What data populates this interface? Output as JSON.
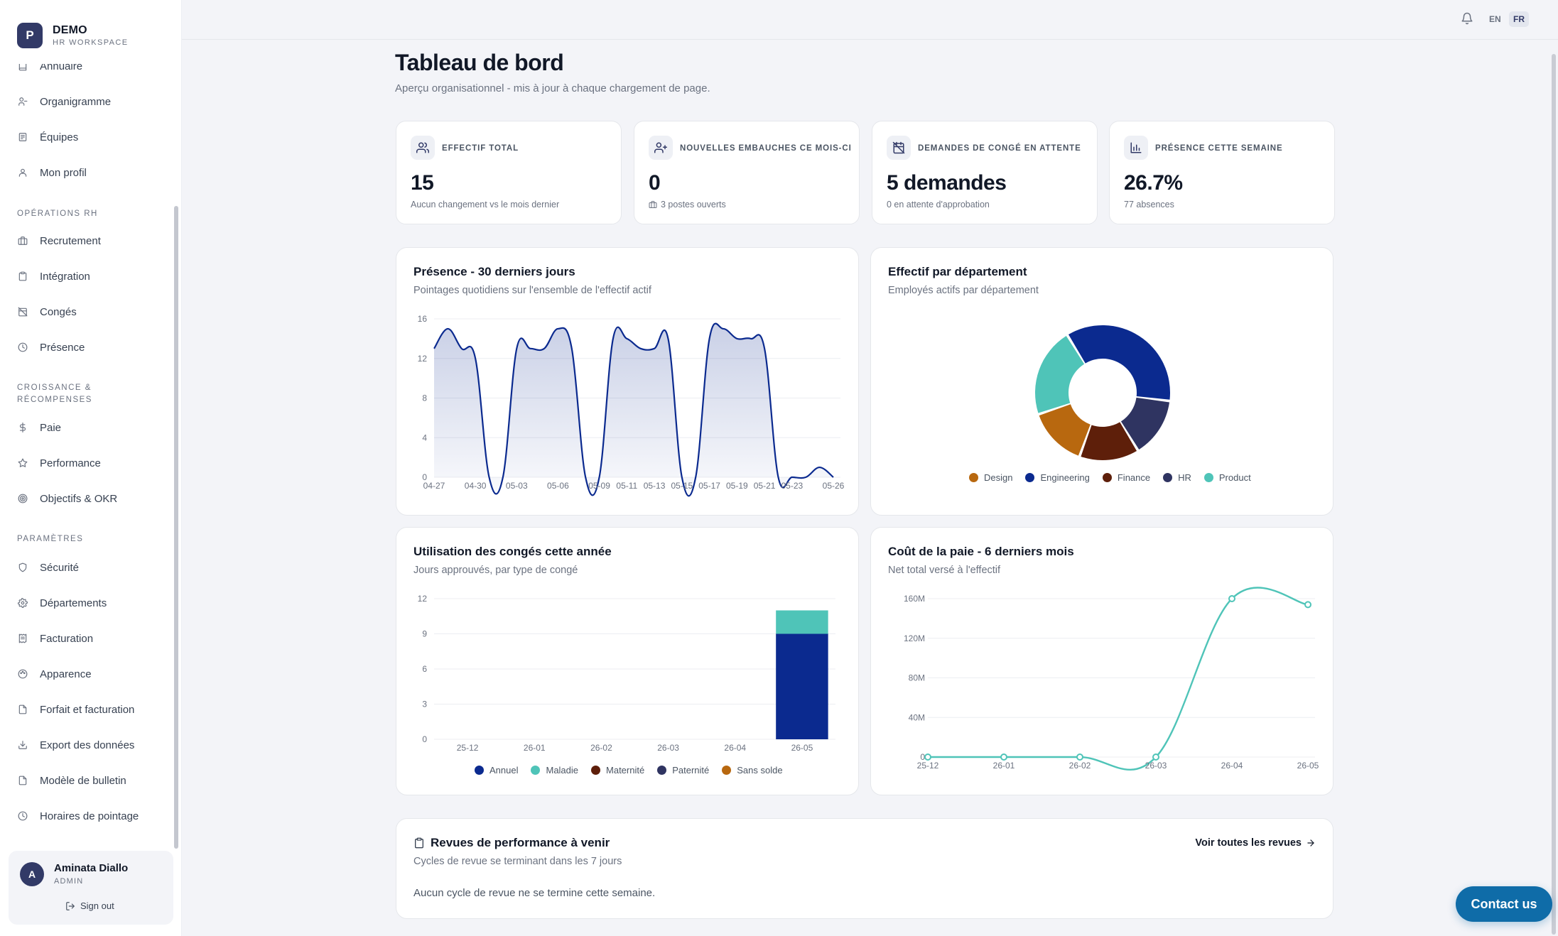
{
  "brand": {
    "logo_letter": "P",
    "name": "DEMO",
    "subtitle": "HR WORKSPACE"
  },
  "sidebar": {
    "items_top": [
      {
        "label": "Annuaire",
        "icon": "book-icon"
      },
      {
        "label": "Organigramme",
        "icon": "org-chart-icon"
      },
      {
        "label": "Équipes",
        "icon": "team-icon"
      },
      {
        "label": "Mon profil",
        "icon": "user-icon"
      }
    ],
    "section_hr": "OPÉRATIONS RH",
    "items_hr": [
      {
        "label": "Recrutement",
        "icon": "briefcase-icon"
      },
      {
        "label": "Intégration",
        "icon": "clipboard-icon"
      },
      {
        "label": "Congés",
        "icon": "calendar-off-icon"
      },
      {
        "label": "Présence",
        "icon": "clock-icon"
      }
    ],
    "section_growth": "CROISSANCE & RÉCOMPENSES",
    "items_growth": [
      {
        "label": "Paie",
        "icon": "dollar-icon"
      },
      {
        "label": "Performance",
        "icon": "star-icon"
      },
      {
        "label": "Objectifs & OKR",
        "icon": "target-icon"
      }
    ],
    "section_settings": "PARAMÈTRES",
    "items_settings": [
      {
        "label": "Sécurité",
        "icon": "shield-icon"
      },
      {
        "label": "Départements",
        "icon": "gear-icon"
      },
      {
        "label": "Facturation",
        "icon": "receipt-icon"
      },
      {
        "label": "Apparence",
        "icon": "palette-icon"
      },
      {
        "label": "Forfait et facturation",
        "icon": "document-icon"
      },
      {
        "label": "Export des données",
        "icon": "download-icon"
      },
      {
        "label": "Modèle de bulletin",
        "icon": "document-icon"
      },
      {
        "label": "Horaires de pointage",
        "icon": "clock-icon"
      }
    ]
  },
  "user": {
    "initial": "A",
    "name": "Aminata Diallo",
    "role": "ADMIN",
    "sign_out": "Sign out"
  },
  "topbar": {
    "lang_en": "EN",
    "lang_fr": "FR",
    "active_lang": "FR"
  },
  "header": {
    "title": "Tableau de bord",
    "subtitle": "Aperçu organisationnel - mis à jour à chaque chargement de page."
  },
  "stats": [
    {
      "label": "EFFECTIF TOTAL",
      "value": "15",
      "note": "Aucun changement vs le mois dernier",
      "icon": "users-icon"
    },
    {
      "label": "NOUVELLES EMBAUCHES CE MOIS-CI",
      "value": "0",
      "note": "3 postes ouverts",
      "icon": "user-plus-icon",
      "note_icon": "briefcase-icon"
    },
    {
      "label": "DEMANDES DE CONGÉ EN ATTENTE",
      "value": "5 demandes",
      "note": "0 en attente d'approbation",
      "icon": "calendar-off-icon"
    },
    {
      "label": "PRÉSENCE CETTE SEMAINE",
      "value": "26.7%",
      "note": "77 absences",
      "icon": "bar-chart-icon"
    }
  ],
  "attendance": {
    "title": "Présence - 30 derniers jours",
    "subtitle": "Pointages quotidiens sur l'ensemble de l'effectif actif"
  },
  "department": {
    "title": "Effectif par département",
    "subtitle": "Employés actifs par département"
  },
  "leave": {
    "title": "Utilisation des congés cette année",
    "subtitle": "Jours approuvés, par type de congé"
  },
  "payroll": {
    "title": "Coût de la paie - 6 derniers mois",
    "subtitle": "Net total versé à l'effectif"
  },
  "reviews": {
    "title": "Revues de performance à venir",
    "subtitle": "Cycles de revue se terminant dans les 7 jours",
    "link": "Voir toutes les revues",
    "empty": "Aucun cycle de revue ne se termine cette semaine."
  },
  "contact_button": "Contact us",
  "colors": {
    "accent": "#323a67",
    "navy": "#0b2a8f",
    "teal": "#4fc4b8",
    "design": "#b8680f",
    "finance": "#5e1f0a",
    "hr": "#2f3461",
    "contact": "#0f6ca8"
  },
  "chart_data": [
    {
      "type": "area",
      "title": "Présence - 30 derniers jours",
      "x": [
        "04-27",
        "04-28",
        "04-29",
        "04-30",
        "05-01",
        "05-02",
        "05-03",
        "05-04",
        "05-05",
        "05-06",
        "05-07",
        "05-08",
        "05-09",
        "05-10",
        "05-11",
        "05-12",
        "05-13",
        "05-14",
        "05-15",
        "05-16",
        "05-17",
        "05-18",
        "05-19",
        "05-20",
        "05-21",
        "05-22",
        "05-23",
        "05-24",
        "05-25",
        "05-26"
      ],
      "x_ticks": [
        "04-27",
        "04-30",
        "05-03",
        "05-06",
        "05-09",
        "05-11",
        "05-13",
        "05-15",
        "05-17",
        "05-19",
        "05-21",
        "05-23",
        "05-26"
      ],
      "values": [
        13,
        15,
        13,
        12,
        0,
        0,
        13,
        13,
        13,
        15,
        13,
        0,
        0,
        14,
        14,
        13,
        13,
        14,
        0,
        0,
        14,
        15,
        14,
        14,
        13,
        0,
        0,
        0,
        1,
        0
      ],
      "ylim": [
        0,
        16
      ],
      "y_ticks": [
        0,
        4,
        8,
        12,
        16
      ],
      "grid": true
    },
    {
      "type": "pie",
      "title": "Effectif par département",
      "categories": [
        "Design",
        "Engineering",
        "Finance",
        "HR",
        "Product"
      ],
      "values": [
        2,
        5,
        2,
        2,
        3
      ],
      "colors": [
        "#b8680f",
        "#0b2a8f",
        "#5e1f0a",
        "#2f3461",
        "#4fc4b8"
      ],
      "order": [
        "Engineering",
        "HR",
        "Finance",
        "Design",
        "Product"
      ],
      "legend": "bottom"
    },
    {
      "type": "bar",
      "stacked": true,
      "title": "Utilisation des congés cette année",
      "categories": [
        "25-12",
        "26-01",
        "26-02",
        "26-03",
        "26-04",
        "26-05"
      ],
      "series": [
        {
          "name": "Annuel",
          "color": "#0b2a8f",
          "values": [
            0,
            0,
            0,
            0,
            0,
            9
          ]
        },
        {
          "name": "Maladie",
          "color": "#4fc4b8",
          "values": [
            0,
            0,
            0,
            0,
            0,
            2
          ]
        },
        {
          "name": "Maternité",
          "color": "#5e1f0a",
          "values": [
            0,
            0,
            0,
            0,
            0,
            0
          ]
        },
        {
          "name": "Paternité",
          "color": "#2f3461",
          "values": [
            0,
            0,
            0,
            0,
            0,
            0
          ]
        },
        {
          "name": "Sans solde",
          "color": "#b8680f",
          "values": [
            0,
            0,
            0,
            0,
            0,
            0
          ]
        }
      ],
      "ylim": [
        0,
        12
      ],
      "y_ticks": [
        0,
        3,
        6,
        9,
        12
      ],
      "legend": "bottom"
    },
    {
      "type": "line",
      "title": "Coût de la paie - 6 derniers mois",
      "x": [
        "25-12",
        "26-01",
        "26-02",
        "26-03",
        "26-04",
        "26-05"
      ],
      "values": [
        0,
        0,
        0,
        0,
        160,
        154
      ],
      "unit": "M",
      "ylim": [
        0,
        160
      ],
      "y_ticks": [
        0,
        40,
        80,
        120,
        160
      ],
      "y_tick_labels": [
        "0",
        "40M",
        "80M",
        "120M",
        "160M"
      ],
      "color": "#4fc4b8"
    }
  ]
}
